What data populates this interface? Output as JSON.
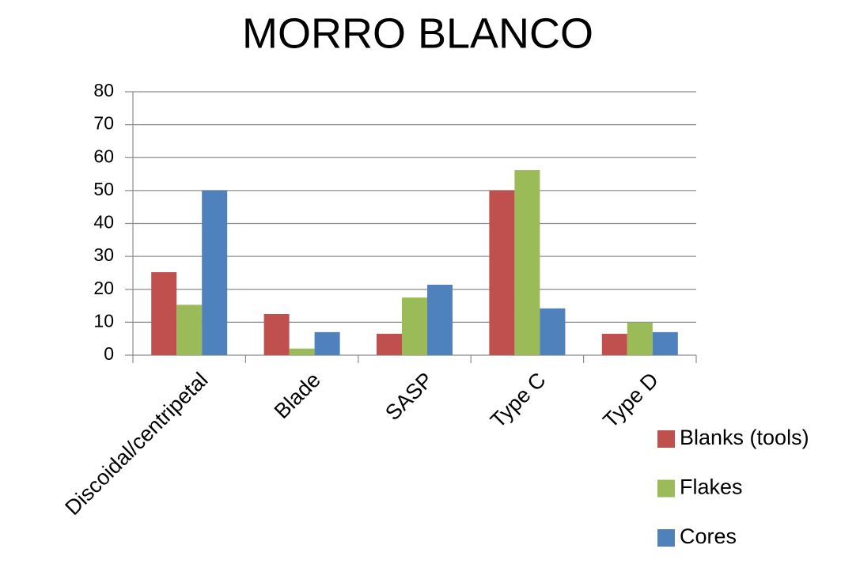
{
  "chart_data": {
    "type": "bar",
    "title": "MORRO BLANCO",
    "categories": [
      "Discoidal/centripetal",
      "Blade",
      "SASP",
      "Type C",
      "Type D"
    ],
    "series": [
      {
        "name": "Blanks (tools)",
        "color": "#c0504d",
        "values": [
          25.2,
          12.5,
          6.5,
          50,
          6.5
        ]
      },
      {
        "name": "Flakes",
        "color": "#9bbb59",
        "values": [
          15.3,
          2,
          17.5,
          56.2,
          9.9
        ]
      },
      {
        "name": "Cores",
        "color": "#4f81bd",
        "values": [
          50,
          7,
          21.4,
          14.2,
          7
        ]
      }
    ],
    "ylim": [
      0,
      80
    ],
    "yticks": [
      0,
      10,
      20,
      30,
      40,
      50,
      60,
      70,
      80
    ],
    "grid": true
  }
}
